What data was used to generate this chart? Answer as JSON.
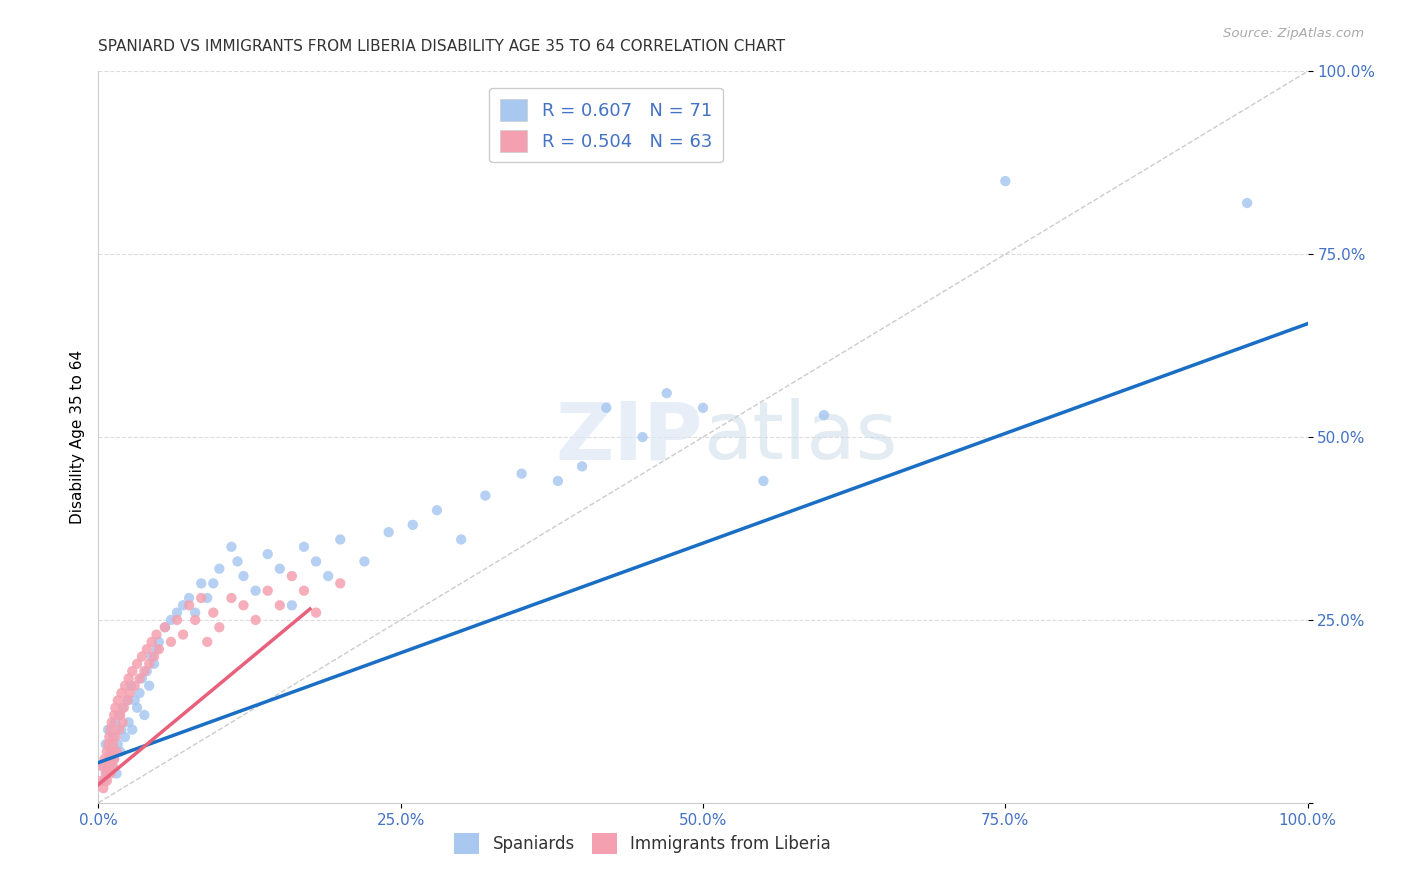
{
  "title": "SPANIARD VS IMMIGRANTS FROM LIBERIA DISABILITY AGE 35 TO 64 CORRELATION CHART",
  "source": "Source: ZipAtlas.com",
  "ylabel": "Disability Age 35 to 64",
  "xlim": [
    0,
    1.0
  ],
  "ylim": [
    0,
    1.0
  ],
  "xticks": [
    0.0,
    0.25,
    0.5,
    0.75,
    1.0
  ],
  "yticks": [
    0.0,
    0.25,
    0.5,
    0.75,
    1.0
  ],
  "xticklabels": [
    "0.0%",
    "25.0%",
    "50.0%",
    "75.0%",
    "100.0%"
  ],
  "yticklabels": [
    "",
    "25.0%",
    "50.0%",
    "75.0%",
    "100.0%"
  ],
  "spaniards_color": "#a8c8f0",
  "liberia_color": "#f5a0b0",
  "trend_blue_color": "#1a6fc4",
  "trend_pink_color": "#e8607a",
  "diagonal_color": "#cccccc",
  "watermark": "ZIPatlas",
  "blue_trend_x0": 0.0,
  "blue_trend_y0": 0.055,
  "blue_trend_x1": 1.0,
  "blue_trend_y1": 0.655,
  "pink_trend_x0": 0.0,
  "pink_trend_y0": 0.025,
  "pink_trend_x1": 0.175,
  "pink_trend_y1": 0.265,
  "spaniards_x": [
    0.004,
    0.005,
    0.006,
    0.007,
    0.008,
    0.009,
    0.01,
    0.011,
    0.012,
    0.013,
    0.014,
    0.015,
    0.016,
    0.017,
    0.018,
    0.019,
    0.02,
    0.022,
    0.024,
    0.025,
    0.027,
    0.028,
    0.03,
    0.032,
    0.034,
    0.036,
    0.038,
    0.04,
    0.042,
    0.044,
    0.046,
    0.048,
    0.05,
    0.055,
    0.06,
    0.065,
    0.07,
    0.075,
    0.08,
    0.085,
    0.09,
    0.095,
    0.1,
    0.11,
    0.115,
    0.12,
    0.13,
    0.14,
    0.15,
    0.16,
    0.17,
    0.18,
    0.19,
    0.2,
    0.22,
    0.24,
    0.26,
    0.28,
    0.3,
    0.32,
    0.35,
    0.38,
    0.4,
    0.42,
    0.45,
    0.47,
    0.5,
    0.55,
    0.6,
    0.75,
    0.95
  ],
  "spaniards_y": [
    0.05,
    0.03,
    0.08,
    0.04,
    0.1,
    0.06,
    0.07,
    0.05,
    0.09,
    0.06,
    0.11,
    0.04,
    0.08,
    0.12,
    0.07,
    0.1,
    0.13,
    0.09,
    0.14,
    0.11,
    0.16,
    0.1,
    0.14,
    0.13,
    0.15,
    0.17,
    0.12,
    0.18,
    0.16,
    0.2,
    0.19,
    0.21,
    0.22,
    0.24,
    0.25,
    0.26,
    0.27,
    0.28,
    0.26,
    0.3,
    0.28,
    0.3,
    0.32,
    0.35,
    0.33,
    0.31,
    0.29,
    0.34,
    0.32,
    0.27,
    0.35,
    0.33,
    0.31,
    0.36,
    0.33,
    0.37,
    0.38,
    0.4,
    0.36,
    0.42,
    0.45,
    0.44,
    0.46,
    0.54,
    0.5,
    0.56,
    0.54,
    0.44,
    0.53,
    0.85,
    0.82
  ],
  "liberia_x": [
    0.002,
    0.003,
    0.004,
    0.005,
    0.006,
    0.007,
    0.007,
    0.008,
    0.008,
    0.009,
    0.009,
    0.01,
    0.01,
    0.011,
    0.011,
    0.012,
    0.012,
    0.013,
    0.013,
    0.014,
    0.014,
    0.015,
    0.016,
    0.017,
    0.018,
    0.019,
    0.02,
    0.021,
    0.022,
    0.024,
    0.025,
    0.026,
    0.028,
    0.03,
    0.032,
    0.034,
    0.036,
    0.038,
    0.04,
    0.042,
    0.044,
    0.046,
    0.048,
    0.05,
    0.055,
    0.06,
    0.065,
    0.07,
    0.075,
    0.08,
    0.085,
    0.09,
    0.095,
    0.1,
    0.11,
    0.12,
    0.13,
    0.14,
    0.15,
    0.16,
    0.17,
    0.18,
    0.2
  ],
  "liberia_y": [
    0.03,
    0.05,
    0.02,
    0.06,
    0.04,
    0.07,
    0.03,
    0.08,
    0.05,
    0.06,
    0.09,
    0.04,
    0.1,
    0.07,
    0.11,
    0.05,
    0.08,
    0.12,
    0.06,
    0.09,
    0.13,
    0.07,
    0.14,
    0.1,
    0.12,
    0.15,
    0.11,
    0.13,
    0.16,
    0.14,
    0.17,
    0.15,
    0.18,
    0.16,
    0.19,
    0.17,
    0.2,
    0.18,
    0.21,
    0.19,
    0.22,
    0.2,
    0.23,
    0.21,
    0.24,
    0.22,
    0.25,
    0.23,
    0.27,
    0.25,
    0.28,
    0.22,
    0.26,
    0.24,
    0.28,
    0.27,
    0.25,
    0.29,
    0.27,
    0.31,
    0.29,
    0.26,
    0.3
  ]
}
